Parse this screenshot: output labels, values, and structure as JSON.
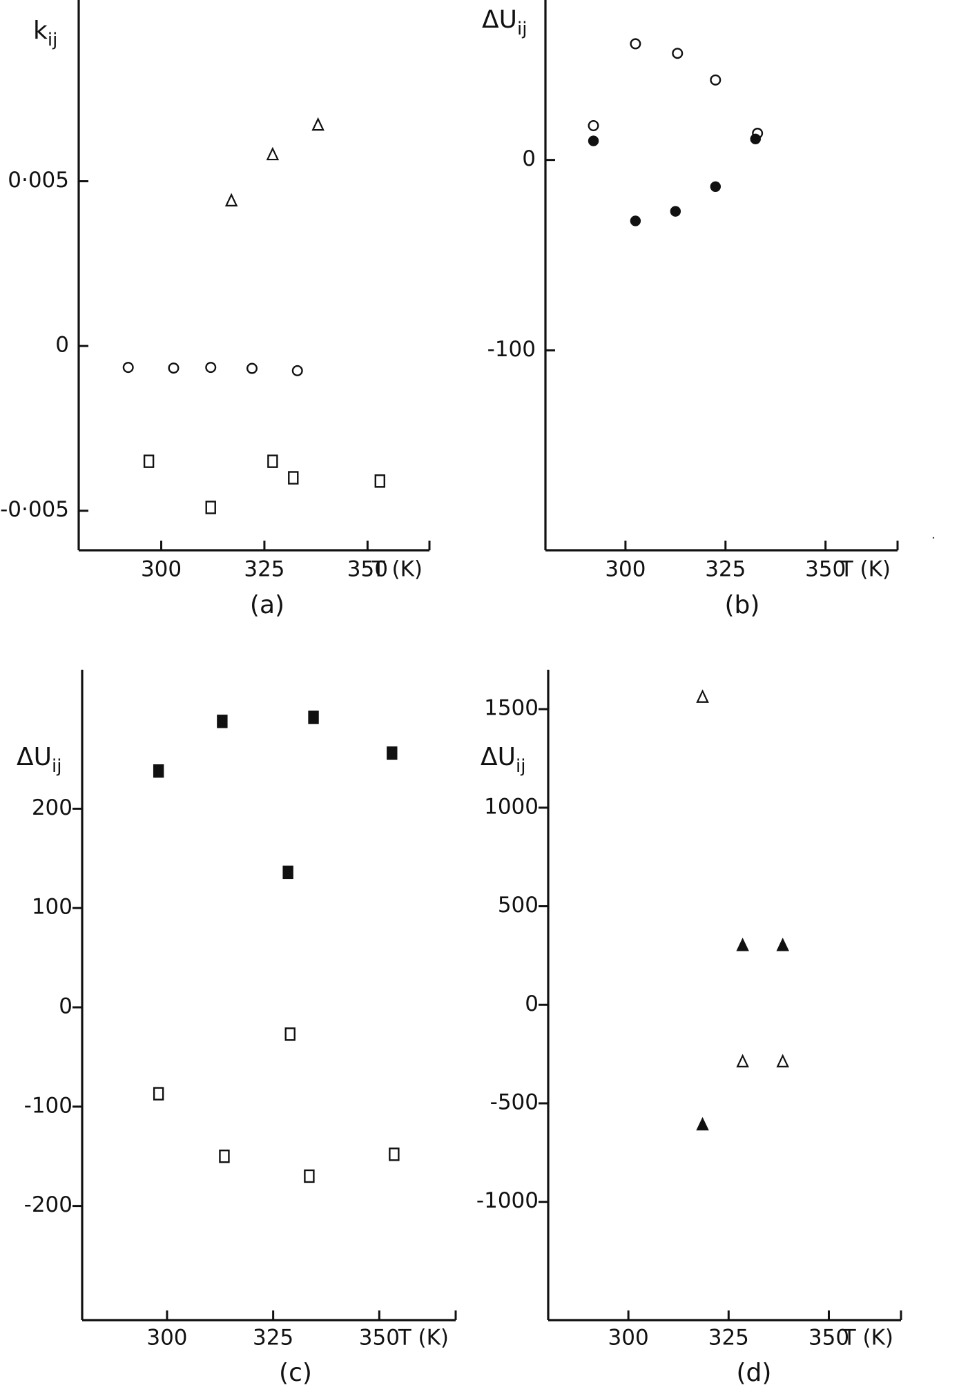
{
  "figure": {
    "panels": [
      {
        "id": "a",
        "label": "(a)",
        "y_label": {
          "main": "k",
          "sub": "ij"
        },
        "x_unit_label": "T (K)",
        "chart_data": {
          "type": "scatter",
          "xlabel": "T (K)",
          "ylabel": "kij",
          "xlim": [
            280,
            365
          ],
          "ylim": [
            -0.0062,
            0.0105
          ],
          "x_ticks": [
            300,
            325,
            350
          ],
          "x_tick_labels": [
            "300",
            "325",
            "350"
          ],
          "y_ticks": [
            -0.005,
            0,
            0.005
          ],
          "y_tick_labels": [
            "-0·005",
            "0",
            "0·005"
          ],
          "series": [
            {
              "marker": "triangle-open",
              "x": [
                317,
                327,
                338
              ],
              "y": [
                0.0044,
                0.0058,
                0.0067
              ]
            },
            {
              "marker": "circle-open",
              "x": [
                292,
                303,
                312,
                322,
                333
              ],
              "y": [
                -0.00065,
                -0.00067,
                -0.00065,
                -0.00068,
                -0.00075
              ]
            },
            {
              "marker": "square-open",
              "x": [
                297,
                327,
                332,
                353,
                312
              ],
              "y": [
                -0.0035,
                -0.0035,
                -0.004,
                -0.0041,
                -0.0049
              ]
            }
          ]
        }
      },
      {
        "id": "b",
        "label": "(b)",
        "y_label": {
          "main": "ΔU",
          "sub": "ij"
        },
        "x_unit_label": "T (K)",
        "chart_data": {
          "type": "scatter",
          "xlabel": "T (K)",
          "ylabel": "ΔUij",
          "xlim": [
            280,
            368
          ],
          "ylim": [
            -205,
            84
          ],
          "x_ticks": [
            300,
            325,
            350
          ],
          "x_tick_labels": [
            "300",
            "325",
            "350"
          ],
          "y_ticks": [
            -100,
            0
          ],
          "y_tick_labels": [
            "-100",
            "0"
          ],
          "series": [
            {
              "marker": "circle-open",
              "x": [
                292,
                302.5,
                313,
                322.5,
                333
              ],
              "y": [
                18,
                61,
                56,
                42,
                14
              ]
            },
            {
              "marker": "circle-filled",
              "x": [
                292,
                302.5,
                312.5,
                322.5,
                332.5
              ],
              "y": [
                10,
                -32,
                -27,
                -14,
                11
              ]
            }
          ]
        }
      },
      {
        "id": "c",
        "label": "(c)",
        "y_label": {
          "main": "ΔU",
          "sub": "ij"
        },
        "x_unit_label": "T (K)",
        "chart_data": {
          "type": "scatter",
          "xlabel": "T (K)",
          "ylabel": "ΔUij",
          "xlim": [
            280,
            368
          ],
          "ylim": [
            -315,
            340
          ],
          "x_ticks": [
            300,
            325,
            350
          ],
          "x_tick_labels": [
            "300",
            "325",
            "350"
          ],
          "y_ticks": [
            -200,
            -100,
            0,
            100,
            200
          ],
          "y_tick_labels": [
            "-200",
            "-100",
            "0",
            "100",
            "200"
          ],
          "series": [
            {
              "marker": "square-filled",
              "x": [
                298,
                313,
                334.5,
                353,
                328.5
              ],
              "y": [
                238,
                288,
                292,
                256,
                136
              ]
            },
            {
              "marker": "square-open",
              "x": [
                329,
                298,
                313.5,
                333.5,
                353.5
              ],
              "y": [
                -27,
                -87,
                -150,
                -170,
                -148
              ]
            }
          ]
        }
      },
      {
        "id": "d",
        "label": "(d)",
        "y_label": {
          "main": "ΔU",
          "sub": "ij"
        },
        "x_unit_label": "T (K)",
        "chart_data": {
          "type": "scatter",
          "xlabel": "T (K)",
          "ylabel": "ΔUij",
          "xlim": [
            280,
            368
          ],
          "ylim": [
            -1600,
            1700
          ],
          "x_ticks": [
            300,
            325,
            350
          ],
          "x_tick_labels": [
            "300",
            "325",
            "350"
          ],
          "y_ticks": [
            -1000,
            -500,
            0,
            500,
            1000,
            1500
          ],
          "y_tick_labels": [
            "-1000",
            "-500",
            "0",
            "500",
            "1000",
            "1500"
          ],
          "series": [
            {
              "marker": "triangle-open",
              "x": [
                318.5,
                328.5,
                338.5
              ],
              "y": [
                1560,
                -290,
                -290
              ]
            },
            {
              "marker": "triangle-filled",
              "x": [
                318.5,
                328.5,
                338.5
              ],
              "y": [
                -610,
                300,
                300
              ]
            }
          ]
        }
      }
    ]
  }
}
